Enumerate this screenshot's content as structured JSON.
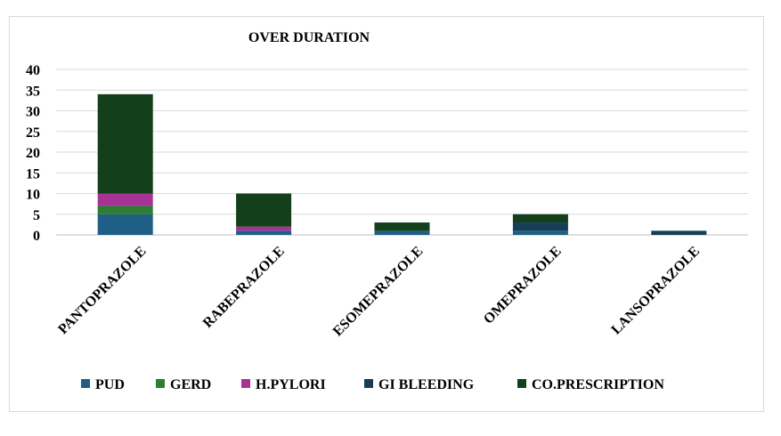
{
  "chart_data": {
    "type": "bar",
    "stacked": true,
    "title": "OVER DURATION",
    "xlabel": "",
    "ylabel": "",
    "ylim": [
      0,
      40
    ],
    "yticks": [
      0,
      5,
      10,
      15,
      20,
      25,
      30,
      35,
      40
    ],
    "grid": true,
    "legend_position": "bottom",
    "categories": [
      "PANTOPRAZOLE",
      "RABEPRAZOLE",
      "ESOMEPRAZOLE",
      "OMEPRAZOLE",
      "LANSOPRAZOLE"
    ],
    "series": [
      {
        "name": "PUD",
        "color": "#1f5f86",
        "values": [
          5,
          1,
          1,
          1,
          0
        ]
      },
      {
        "name": "GERD",
        "color": "#2e7d32",
        "values": [
          2,
          0,
          0,
          0,
          0
        ]
      },
      {
        "name": "H.PYLORI",
        "color": "#a83397",
        "values": [
          3,
          1,
          0,
          0,
          0
        ]
      },
      {
        "name": "GI BLEEDING",
        "color": "#173e56",
        "values": [
          0,
          0,
          0,
          2,
          1
        ]
      },
      {
        "name": "CO.PRESCRIPTION",
        "color": "#133f1a",
        "values": [
          24,
          8,
          2,
          2,
          0
        ]
      }
    ]
  }
}
